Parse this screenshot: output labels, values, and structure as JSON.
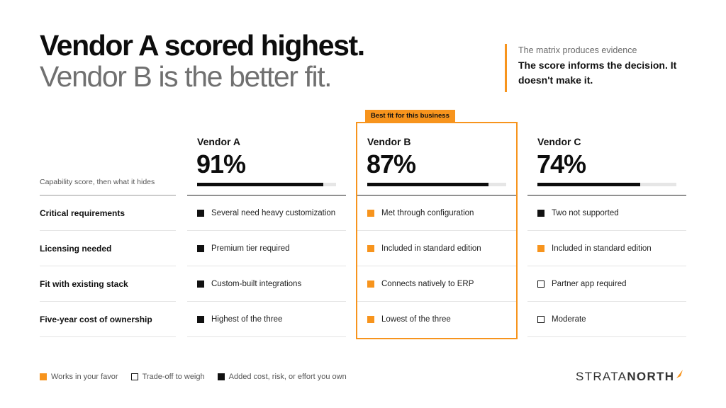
{
  "headline": {
    "line1": "Vendor A scored highest.",
    "line2": "Vendor B is the better fit."
  },
  "callout": {
    "kicker": "The matrix produces evidence",
    "message": "The score informs the decision. It doesn't make it."
  },
  "matrix": {
    "row_header_label": "Capability score, then what it hides",
    "badge": "Best fit for this business",
    "rows": [
      "Critical requirements",
      "Licensing needed",
      "Fit with existing stack",
      "Five-year cost of ownership"
    ],
    "vendors": [
      {
        "name": "Vendor A",
        "score_label": "91%",
        "score": 0.91,
        "highlighted": false,
        "cells": [
          {
            "text": "Several need heavy customization",
            "type": "cost"
          },
          {
            "text": "Premium tier required",
            "type": "cost"
          },
          {
            "text": "Custom-built integrations",
            "type": "cost"
          },
          {
            "text": "Highest of the three",
            "type": "cost"
          }
        ]
      },
      {
        "name": "Vendor B",
        "score_label": "87%",
        "score": 0.87,
        "highlighted": true,
        "cells": [
          {
            "text": "Met through configuration",
            "type": "favor"
          },
          {
            "text": "Included in standard edition",
            "type": "favor"
          },
          {
            "text": "Connects natively to ERP",
            "type": "favor"
          },
          {
            "text": "Lowest of the three",
            "type": "favor"
          }
        ]
      },
      {
        "name": "Vendor C",
        "score_label": "74%",
        "score": 0.74,
        "highlighted": false,
        "cells": [
          {
            "text": "Two not supported",
            "type": "cost"
          },
          {
            "text": "Included in standard edition",
            "type": "favor"
          },
          {
            "text": "Partner app required",
            "type": "tradeoff"
          },
          {
            "text": "Moderate",
            "type": "tradeoff"
          }
        ]
      }
    ]
  },
  "legend": {
    "favor": "Works in your favor",
    "tradeoff": "Trade-off to weigh",
    "cost": "Added cost, risk, or effort you own"
  },
  "brand": {
    "part1": "STRATA",
    "part2": "NORTH"
  },
  "colors": {
    "accent": "#f7941d",
    "ink": "#111111",
    "muted": "#707070"
  }
}
